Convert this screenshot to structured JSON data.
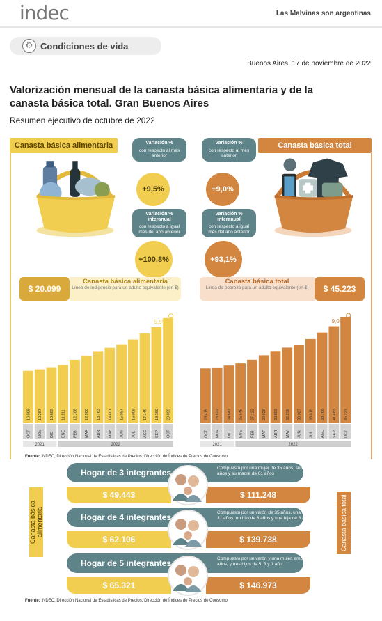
{
  "header": {
    "logo": "indec",
    "tagline": "Las Malvinas son argentinas",
    "section": "Condiciones de vida",
    "date": "Buenos Aires, 17 de noviembre de 2022",
    "title": "Valorización mensual de la canasta básica alimentaria y de la canasta básica total. Gran Buenos Aires",
    "subtitle": "Resumen ejecutivo de octubre de 2022"
  },
  "cba": {
    "header": "Canasta básica alimentaria",
    "amount": "$ 20.099",
    "label": "Canasta básica alimentaria",
    "desc": "Línea de indigencia para un adulto equivalente (en $)",
    "var_month_title": "Variación %",
    "var_month_desc": "con respecto al mes anterior",
    "var_month_value": "+9,5%",
    "var_year_title": "Variación % interanual",
    "var_year_desc": "con respecto a igual mes del año anterior",
    "var_year_value": "+100,8%",
    "chart_top_label": "9,5%",
    "vertical_label": "Canasta básica alimentaria",
    "color": "#f1cd50"
  },
  "cbt": {
    "header": "Canasta básica total",
    "amount": "$ 45.223",
    "label": "Canasta básica total",
    "desc": "Línea de pobreza para un adulto equivalente (en $)",
    "var_month_title": "Variación %",
    "var_month_desc": "con respecto al mes anterior",
    "var_month_value": "+9,0%",
    "var_year_title": "Variación % interanual",
    "var_year_desc": "con respecto a igual mes del año anterior",
    "var_year_value": "+93,1%",
    "chart_top_label": "9,0%",
    "vertical_label": "Canasta básica total",
    "color": "#d28640"
  },
  "chart_data": [
    {
      "type": "bar",
      "categories": [
        "OCT",
        "NOV",
        "DIC",
        "ENE",
        "FEB",
        "MAR",
        "ABR",
        "MAY",
        "JUN",
        "JUL",
        "AGO",
        "SEP",
        "OCT"
      ],
      "year_groups": [
        {
          "label": "2021",
          "span": 3
        },
        {
          "label": "2022",
          "span": 10
        }
      ],
      "values": [
        10009,
        10287,
        10689,
        11111,
        12108,
        12900,
        13763,
        14401,
        15057,
        16008,
        17149,
        18360,
        20099
      ],
      "value_labels": [
        "10.009",
        "10.287",
        "10.689",
        "11.111",
        "12.108",
        "12.900",
        "13.763",
        "14.401",
        "15.057",
        "16.008",
        "17.149",
        "18.360",
        "20.099"
      ],
      "ylim": [
        0,
        21000
      ]
    },
    {
      "type": "bar",
      "categories": [
        "OCT",
        "NOV",
        "DIC",
        "ENE",
        "FEB",
        "MAR",
        "ABR",
        "MAY",
        "JUN",
        "JUL",
        "AGO",
        "SEP",
        "OCT"
      ],
      "year_groups": [
        {
          "label": "2021",
          "span": 3
        },
        {
          "label": "2022",
          "span": 10
        }
      ],
      "values": [
        23419,
        23822,
        24643,
        25545,
        27122,
        29028,
        30859,
        32298,
        33327,
        36019,
        38766,
        41483,
        45223
      ],
      "value_labels": [
        "23.419",
        "23.822",
        "24.643",
        "25.545",
        "27.122",
        "29.028",
        "30.859",
        "32.298",
        "33.327",
        "36.019",
        "38.766",
        "41.483",
        "45.223"
      ],
      "ylim": [
        0,
        47000
      ]
    }
  ],
  "source_1": "Fuente: INDEC, Dirección Nacional de Estadísticas de Precios. Dirección de Índices de Precios de Consumo.",
  "source_prefix": "Fuente:",
  "source_text": "INDEC, Dirección Nacional de Estadísticas de Precios. Dirección de Índices de Precios de Consumo.",
  "hogares": [
    {
      "title": "Hogar de 3 integrantes",
      "desc": "Compuesto por una mujer de 35 años, su hijo de 18 años y su madre de 61 años",
      "cba": "$ 49.443",
      "cbt": "$ 111.248"
    },
    {
      "title": "Hogar de 4 integrantes",
      "desc": "Compuesto por un varón de 35 años, una mujer de 31 años, un hijo de 6 años y una hija de 8 años",
      "cba": "$ 62.106",
      "cbt": "$ 139.738"
    },
    {
      "title": "Hogar de 5 integrantes",
      "desc": "Compuesto por un varón y una mujer, ambos de 30 años, y tres hijos de 5, 3 y 1 año",
      "cba": "$ 65.321",
      "cbt": "$ 146.973"
    }
  ]
}
